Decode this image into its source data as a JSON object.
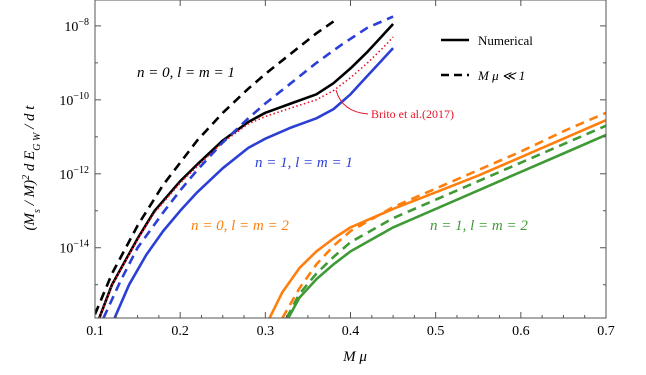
{
  "chart_data": {
    "type": "line",
    "xlabel": "M μ",
    "ylabel": "(M_s / M)^2 d E_{GW} / d t",
    "xlim": [
      0.1,
      0.7
    ],
    "ylim_log10": [
      -15.9,
      -7.3
    ],
    "y_scale": "log",
    "x_ticks": [
      "0.1",
      "0.2",
      "0.3",
      "0.4",
      "0.5",
      "0.6",
      "0.7"
    ],
    "y_ticks": [
      {
        "exp": -8,
        "label": "10",
        "sup": "−8"
      },
      {
        "exp": -10,
        "label": "10",
        "sup": "−10"
      },
      {
        "exp": -12,
        "label": "10",
        "sup": "−12"
      },
      {
        "exp": -14,
        "label": "10",
        "sup": "−14"
      }
    ],
    "legend": {
      "position": "top-right",
      "entries": [
        {
          "label": "Numerical",
          "style": "solid"
        },
        {
          "label": "M μ ≪ 1",
          "style": "dashed"
        }
      ]
    },
    "annotations": {
      "n0_l1": "n = 0, l = m = 1",
      "n1_l1": "n = 1, l = m = 1",
      "n0_l2": "n = 0, l = m = 2",
      "n1_l2": "n = 1, l = m = 2",
      "brito": "Brito et al.(2017)"
    },
    "colors": {
      "black": "#000000",
      "blue": "#2b3fd6",
      "orange": "#ff7f0e",
      "green": "#3f9a35",
      "red": "#e8132a"
    },
    "series": [
      {
        "color": "black",
        "style": "dashed",
        "x": [
          0.1,
          0.12,
          0.15,
          0.18,
          0.2,
          0.22,
          0.25,
          0.28,
          0.3,
          0.33,
          0.36,
          0.385
        ],
        "log10_y": [
          -15.8,
          -14.7,
          -13.4,
          -12.3,
          -11.7,
          -11.1,
          -10.35,
          -9.7,
          -9.3,
          -8.75,
          -8.2,
          -7.8
        ]
      },
      {
        "color": "black",
        "style": "solid",
        "x": [
          0.105,
          0.12,
          0.15,
          0.17,
          0.2,
          0.22,
          0.25,
          0.28,
          0.3,
          0.33,
          0.36,
          0.38,
          0.4,
          0.42,
          0.44,
          0.45
        ],
        "log10_y": [
          -15.9,
          -15.0,
          -13.75,
          -13.0,
          -12.2,
          -11.75,
          -11.1,
          -10.6,
          -10.35,
          -10.1,
          -9.85,
          -9.55,
          -9.15,
          -8.7,
          -8.2,
          -7.95
        ]
      },
      {
        "color": "red",
        "style": "dotted",
        "x": [
          0.105,
          0.12,
          0.15,
          0.17,
          0.2,
          0.22,
          0.25,
          0.28,
          0.3,
          0.33,
          0.36,
          0.38,
          0.4,
          0.42,
          0.44,
          0.45
        ],
        "log10_y": [
          -15.9,
          -15.02,
          -13.78,
          -13.05,
          -12.25,
          -11.8,
          -11.15,
          -10.65,
          -10.45,
          -10.22,
          -10.0,
          -9.75,
          -9.4,
          -9.0,
          -8.55,
          -8.3
        ]
      },
      {
        "color": "blue",
        "style": "dashed",
        "x": [
          0.11,
          0.13,
          0.15,
          0.18,
          0.2,
          0.22,
          0.25,
          0.28,
          0.3,
          0.33,
          0.36,
          0.39,
          0.42,
          0.45
        ],
        "log10_y": [
          -15.9,
          -14.9,
          -14.0,
          -13.05,
          -12.45,
          -11.9,
          -11.15,
          -10.5,
          -10.1,
          -9.55,
          -9.0,
          -8.5,
          -8.05,
          -7.75
        ]
      },
      {
        "color": "blue",
        "style": "solid",
        "x": [
          0.123,
          0.14,
          0.16,
          0.18,
          0.2,
          0.22,
          0.25,
          0.28,
          0.3,
          0.33,
          0.36,
          0.38,
          0.4,
          0.42,
          0.44,
          0.45
        ],
        "log10_y": [
          -15.9,
          -15.0,
          -14.2,
          -13.55,
          -13.0,
          -12.5,
          -11.85,
          -11.3,
          -11.05,
          -10.75,
          -10.5,
          -10.25,
          -9.85,
          -9.35,
          -8.85,
          -8.6
        ]
      },
      {
        "color": "orange",
        "style": "dashed",
        "x": [
          0.32,
          0.34,
          0.36,
          0.38,
          0.4,
          0.45,
          0.5,
          0.55,
          0.6,
          0.65,
          0.7
        ],
        "log10_y": [
          -15.9,
          -15.1,
          -14.45,
          -13.95,
          -13.55,
          -12.9,
          -12.4,
          -11.9,
          -11.4,
          -10.85,
          -10.35
        ]
      },
      {
        "color": "orange",
        "style": "solid",
        "x": [
          0.305,
          0.32,
          0.34,
          0.36,
          0.38,
          0.4,
          0.45,
          0.5,
          0.55,
          0.6,
          0.65,
          0.7
        ],
        "log10_y": [
          -15.9,
          -15.2,
          -14.55,
          -14.1,
          -13.75,
          -13.45,
          -12.95,
          -12.5,
          -12.05,
          -11.55,
          -11.05,
          -10.55
        ]
      },
      {
        "color": "green",
        "style": "dashed",
        "x": [
          0.325,
          0.34,
          0.36,
          0.38,
          0.4,
          0.45,
          0.5,
          0.55,
          0.6,
          0.65,
          0.7
        ],
        "log10_y": [
          -15.9,
          -15.25,
          -14.7,
          -14.25,
          -13.85,
          -13.2,
          -12.7,
          -12.2,
          -11.7,
          -11.2,
          -10.7
        ]
      },
      {
        "color": "green",
        "style": "solid",
        "x": [
          0.327,
          0.34,
          0.36,
          0.38,
          0.4,
          0.45,
          0.5,
          0.55,
          0.6,
          0.65,
          0.7
        ],
        "log10_y": [
          -15.9,
          -15.35,
          -14.85,
          -14.45,
          -14.1,
          -13.45,
          -12.95,
          -12.45,
          -11.95,
          -11.45,
          -10.95
        ]
      }
    ]
  }
}
